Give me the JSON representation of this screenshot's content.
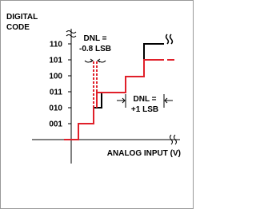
{
  "axis_title_y": [
    "DIGITAL",
    "CODE"
  ],
  "axis_title_x": "ANALOG INPUT (V)",
  "codes": [
    "110",
    "101",
    "100",
    "011",
    "010",
    "001"
  ],
  "annotations": [
    [
      "DNL =",
      "-0.8 LSB"
    ],
    [
      "DNL =",
      "+1 LSB"
    ]
  ]
}
